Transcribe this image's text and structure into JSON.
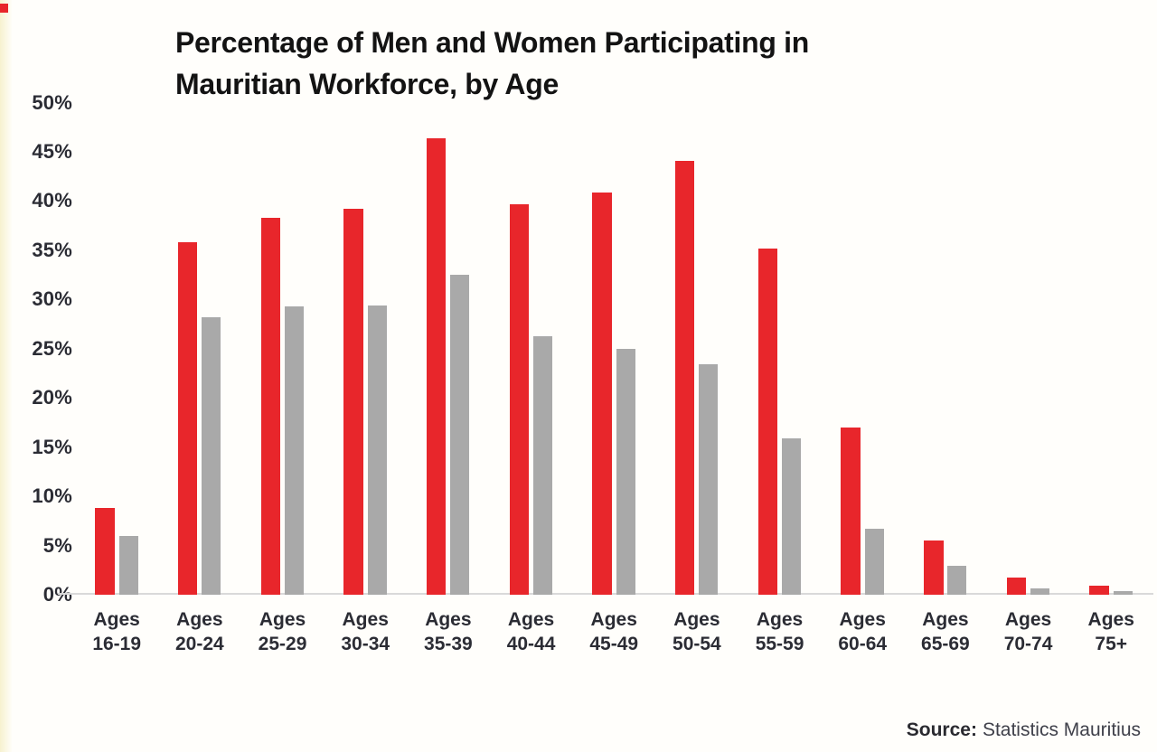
{
  "title": {
    "full": "Percentage of Men and Women Participating in Mauritian Workforce, by Age",
    "line1": "Percentage of Men and Women Participating in",
    "line2": "Mauritian Workforce, by Age"
  },
  "source": {
    "label": "Source:",
    "text": "Statistics Mauritius"
  },
  "colors": {
    "men_bar": "#e8262b",
    "women_bar": "#a9a9a9",
    "axis_line": "#d9d9d9",
    "title_text": "#131313",
    "tick_text": "#2b2c34",
    "left_band": "#f7f2cf"
  },
  "chart_data": {
    "type": "bar",
    "title": "Percentage of Men and Women Participating in Mauritian Workforce, by Age",
    "category_prefix": "Ages",
    "categories": [
      "16-19",
      "20-24",
      "25-29",
      "30-34",
      "35-39",
      "40-44",
      "45-49",
      "50-54",
      "55-59",
      "60-64",
      "65-69",
      "70-74",
      "75+"
    ],
    "series": [
      {
        "name": "Men",
        "color": "#e8262b",
        "values": [
          8.8,
          35.8,
          38.3,
          39.2,
          46.4,
          39.7,
          40.9,
          44.1,
          35.2,
          17.0,
          5.5,
          1.7,
          0.9
        ]
      },
      {
        "name": "Women",
        "color": "#a9a9a9",
        "values": [
          6.0,
          28.2,
          29.3,
          29.4,
          32.5,
          26.3,
          25.0,
          23.4,
          15.9,
          6.7,
          2.9,
          0.6,
          0.4
        ]
      }
    ],
    "xlabel": "",
    "ylabel": "",
    "ylim": [
      0,
      50
    ],
    "ytick_step": 5,
    "ytick_labels": [
      "0%",
      "5%",
      "10%",
      "15%",
      "20%",
      "25%",
      "30%",
      "35%",
      "40%",
      "45%",
      "50%"
    ],
    "grid": false,
    "legend": "none",
    "source": "Source: Statistics Mauritius"
  }
}
